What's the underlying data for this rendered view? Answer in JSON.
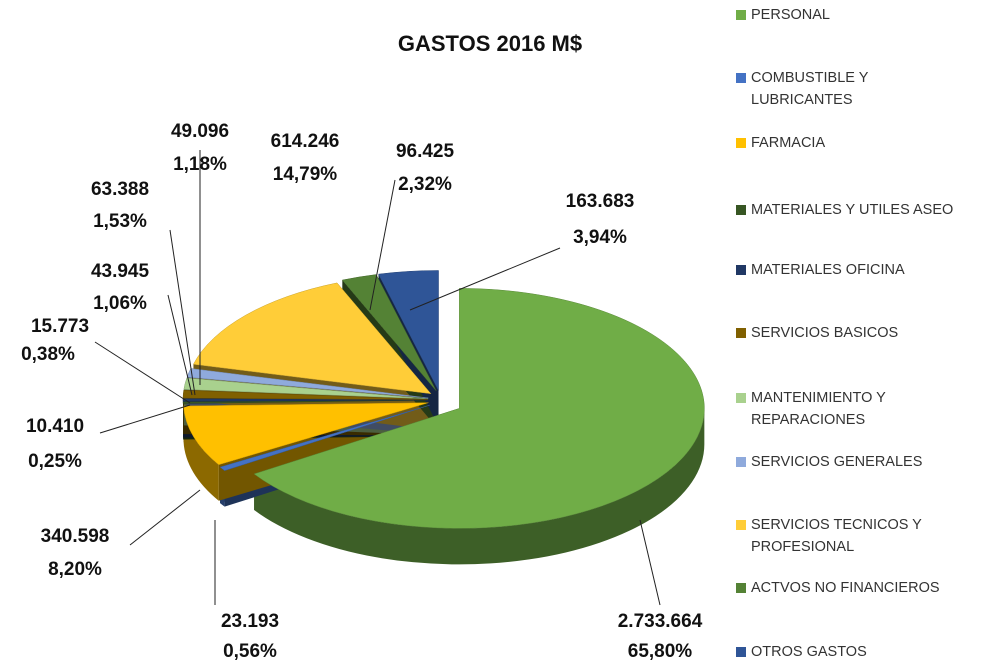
{
  "chart_data": {
    "type": "pie3d",
    "title": "GASTOS 2016 M$",
    "categories": [
      "PERSONAL",
      "COMBUSTIBLE Y LUBRICANTES",
      "FARMACIA",
      "MATERIALES Y UTILES ASEO",
      "MATERIALES OFICINA",
      "SERVICIOS BASICOS",
      "MANTENIMIENTO Y REPARACIONES",
      "SERVICIOS GENERALES",
      "SERVICIOS TECNICOS Y PROFESIONAL",
      "ACTVOS NO FINANCIEROS",
      "OTROS GASTOS"
    ],
    "values": [
      2733664,
      23193,
      340598,
      10410,
      15773,
      43945,
      63388,
      49096,
      614246,
      96425,
      163683
    ],
    "value_labels": [
      "2.733.664",
      "23.193",
      "340.598",
      "10.410",
      "15.773",
      "43.945",
      "63.388",
      "49.096",
      "614.246",
      "96.425",
      "163.683"
    ],
    "percentages": [
      65.8,
      0.56,
      8.2,
      0.25,
      0.38,
      1.06,
      1.53,
      1.18,
      14.79,
      2.32,
      3.94
    ],
    "percentage_labels": [
      "65,80%",
      "0,56%",
      "8,20%",
      "0,25%",
      "0,38%",
      "1,06%",
      "1,53%",
      "1,18%",
      "14,79%",
      "2,32%",
      "3,94%"
    ],
    "colors": [
      "#70ad47",
      "#4472c4",
      "#ffc000",
      "#375623",
      "#203864",
      "#806000",
      "#a9d18e",
      "#8faadc",
      "#ffcd38",
      "#548235",
      "#2f5597"
    ],
    "legend": "right"
  }
}
